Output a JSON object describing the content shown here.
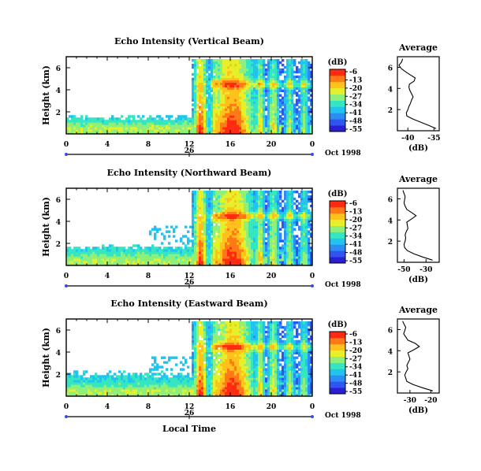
{
  "panels": [
    {
      "title": "Echo Intensity (Vertical Beam)",
      "ylabel": "Height (km)",
      "y_ticks": [
        "6",
        "4",
        "2"
      ],
      "x_ticks": [
        "0",
        "4",
        "8",
        "12",
        "16",
        "20",
        "0"
      ],
      "date_day": "26",
      "colorbar_unit": "(dB)",
      "colorbar_ticks": [
        "-6",
        "-13",
        "-20",
        "-27",
        "-34",
        "-41",
        "-48",
        "-55"
      ],
      "avg_title": "Average",
      "avg_xticks": [
        "-40",
        "-35"
      ],
      "avg_yticks": [
        "6",
        "4",
        "2"
      ],
      "avg_xlabel": "(dB)",
      "date_label": "Oct 1998"
    },
    {
      "title": "Echo Intensity (Northward Beam)",
      "ylabel": "Height (km)",
      "y_ticks": [
        "6",
        "4",
        "2"
      ],
      "x_ticks": [
        "0",
        "4",
        "8",
        "12",
        "16",
        "20",
        "0"
      ],
      "date_day": "26",
      "colorbar_unit": "(dB)",
      "colorbar_ticks": [
        "-6",
        "-13",
        "-20",
        "-27",
        "-34",
        "-41",
        "-48",
        "-55"
      ],
      "avg_title": "Average",
      "avg_xticks": [
        "-50",
        "-30"
      ],
      "avg_yticks": [
        "6",
        "4",
        "2"
      ],
      "avg_xlabel": "(dB)",
      "date_label": "Oct 1998"
    },
    {
      "title": "Echo Intensity (Eastward Beam)",
      "ylabel": "Height (km)",
      "y_ticks": [
        "6",
        "4",
        "2"
      ],
      "x_ticks": [
        "0",
        "4",
        "8",
        "12",
        "16",
        "20",
        "0"
      ],
      "date_day": "26",
      "colorbar_unit": "(dB)",
      "colorbar_ticks": [
        "-6",
        "-13",
        "-20",
        "-27",
        "-34",
        "-41",
        "-48",
        "-55"
      ],
      "avg_title": "Average",
      "avg_xticks": [
        "-30",
        "-20"
      ],
      "avg_yticks": [
        "6",
        "4",
        "2"
      ],
      "avg_xlabel": "(dB)",
      "date_label": "Oct 1998"
    }
  ],
  "xlabel_bottom": "Local Time",
  "colormap": [
    "#2a1fd0",
    "#2f54f0",
    "#2c8df5",
    "#22c3ee",
    "#34e6c2",
    "#8ef07a",
    "#e6f02a",
    "#ffc21c",
    "#ff7a16",
    "#ff2a12"
  ],
  "chart_data": [
    {
      "type": "heatmap",
      "title": "Echo Intensity (Vertical Beam)",
      "xlabel": "",
      "ylabel": "Height (km)",
      "xlim_hours": [
        0,
        24
      ],
      "ylim_km": [
        0,
        7
      ],
      "clim_db": [
        -55,
        -6
      ],
      "profile": {
        "title": "Average",
        "xlabel": "(dB)",
        "xlim": [
          -42,
          -34
        ],
        "ylim": [
          0,
          7
        ],
        "height_km": [
          0.2,
          0.5,
          0.8,
          1.1,
          1.4,
          1.7,
          2.0,
          2.3,
          2.6,
          2.9,
          3.2,
          3.5,
          3.8,
          4.1,
          4.4,
          4.7,
          5.0,
          5.3,
          5.6,
          5.9,
          6.2,
          6.5,
          6.8
        ],
        "db": [
          -34.6,
          -36.0,
          -37.5,
          -39.0,
          -40.2,
          -40.3,
          -40.0,
          -39.8,
          -39.5,
          -39.3,
          -39.0,
          -39.3,
          -39.6,
          -39.8,
          -39.7,
          -38.8,
          -38.6,
          -39.6,
          -40.5,
          -41.3,
          -41.7,
          -41.2,
          -41.0
        ]
      }
    },
    {
      "type": "heatmap",
      "title": "Echo Intensity (Northward Beam)",
      "xlabel": "",
      "ylabel": "Height (km)",
      "xlim_hours": [
        0,
        24
      ],
      "ylim_km": [
        0,
        7
      ],
      "clim_db": [
        -55,
        -6
      ],
      "profile": {
        "title": "Average",
        "xlabel": "(dB)",
        "xlim": [
          -56,
          -18
        ],
        "ylim": [
          0,
          7
        ],
        "height_km": [
          0.2,
          0.5,
          0.8,
          1.1,
          1.4,
          1.7,
          2.0,
          2.3,
          2.6,
          2.9,
          3.2,
          3.5,
          3.8,
          4.1,
          4.4,
          4.7,
          5.0,
          5.3,
          5.6,
          5.9,
          6.2,
          6.5,
          6.8
        ],
        "db": [
          -24.0,
          -33.0,
          -41.0,
          -47.0,
          -49.5,
          -50.0,
          -49.0,
          -48.5,
          -49.0,
          -48.0,
          -46.5,
          -47.0,
          -47.5,
          -43.0,
          -39.0,
          -43.0,
          -47.5,
          -49.0,
          -50.0,
          -49.5,
          -49.0,
          -50.0,
          -51.0
        ]
      }
    },
    {
      "type": "heatmap",
      "title": "Echo Intensity (Eastward Beam)",
      "xlabel": "Local Time",
      "ylabel": "Height (km)",
      "xlim_hours": [
        0,
        24
      ],
      "ylim_km": [
        0,
        7
      ],
      "clim_db": [
        -55,
        -6
      ],
      "profile": {
        "title": "Average",
        "xlabel": "(dB)",
        "xlim": [
          -36,
          -16
        ],
        "ylim": [
          0,
          7
        ],
        "height_km": [
          0.2,
          0.5,
          0.8,
          1.1,
          1.4,
          1.7,
          2.0,
          2.3,
          2.6,
          2.9,
          3.2,
          3.5,
          3.8,
          4.1,
          4.4,
          4.7,
          5.0,
          5.3,
          5.6,
          5.9,
          6.2,
          6.5,
          6.8
        ],
        "db": [
          -19.0,
          -24.0,
          -28.5,
          -31.5,
          -32.0,
          -32.5,
          -31.8,
          -31.0,
          -31.5,
          -30.8,
          -30.0,
          -30.5,
          -31.0,
          -28.0,
          -25.5,
          -27.5,
          -31.0,
          -32.0,
          -33.0,
          -32.5,
          -32.0,
          -32.8,
          -33.5
        ]
      }
    }
  ]
}
